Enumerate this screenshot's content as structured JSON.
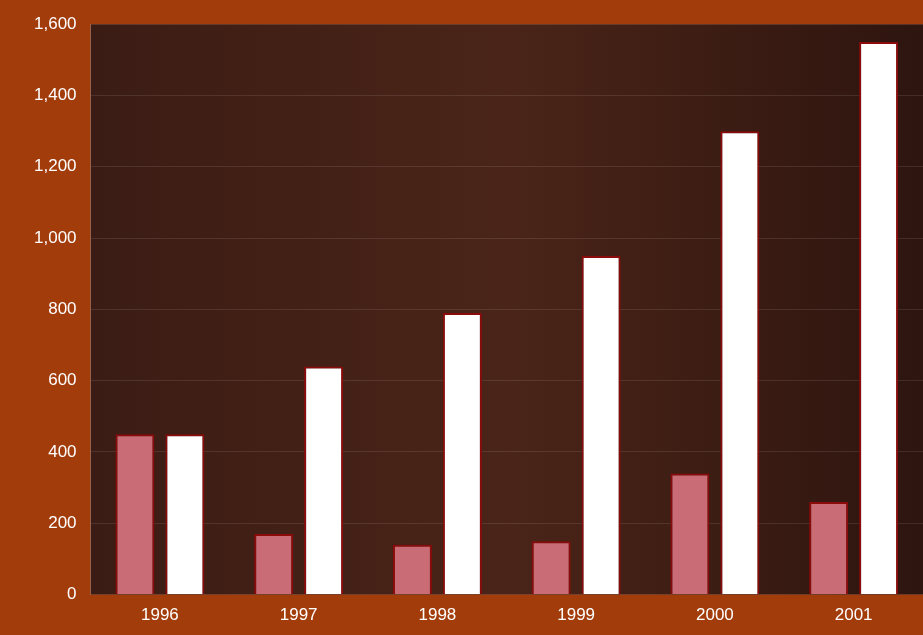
{
  "chart_data": {
    "type": "bar",
    "categories": [
      "1996",
      "1997",
      "1998",
      "1999",
      "2000",
      "2001"
    ],
    "series": [
      {
        "color": "#c96c76",
        "values": [
          450,
          170,
          140,
          150,
          340,
          260
        ]
      },
      {
        "color": "#ffffff",
        "values": [
          450,
          640,
          790,
          950,
          1300,
          1550
        ]
      }
    ],
    "ylim": [
      0,
      1600
    ],
    "yticks": [
      0,
      200,
      400,
      600,
      800,
      {
        "value": 1000,
        "label": "1,000"
      },
      {
        "value": 1200,
        "label": "1,200"
      },
      {
        "value": 1400,
        "label": "1,400"
      },
      {
        "value": 1600,
        "label": "1,600"
      }
    ],
    "grid": true
  }
}
